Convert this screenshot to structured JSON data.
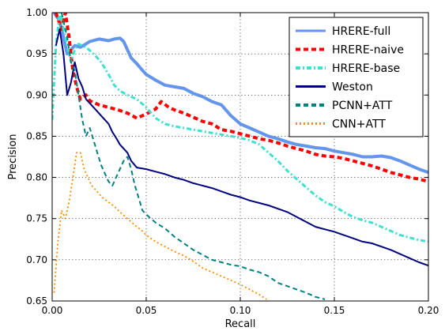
{
  "chart_data": {
    "type": "line",
    "xlabel": "Recall",
    "ylabel": "Precision",
    "xlim": [
      0.0,
      0.2
    ],
    "ylim": [
      0.65,
      1.0
    ],
    "x_ticks": [
      0.0,
      0.05,
      0.1,
      0.15,
      0.2
    ],
    "y_ticks": [
      0.65,
      0.7,
      0.75,
      0.8,
      0.85,
      0.9,
      0.95,
      1.0
    ],
    "x_tick_labels": [
      "0.00",
      "0.05",
      "0.10",
      "0.15",
      "0.20"
    ],
    "y_tick_labels": [
      "0.65",
      "0.70",
      "0.75",
      "0.80",
      "0.85",
      "0.90",
      "0.95",
      "1.00"
    ],
    "grid": true,
    "legend_position": "top-right",
    "series": [
      {
        "name": "HRERE-full",
        "color": "#6495ed",
        "style": "solid",
        "points": [
          [
            0.001,
            1.0
          ],
          [
            0.004,
            0.99
          ],
          [
            0.006,
            0.97
          ],
          [
            0.008,
            0.95
          ],
          [
            0.01,
            0.955
          ],
          [
            0.012,
            0.96
          ],
          [
            0.015,
            0.958
          ],
          [
            0.018,
            0.962
          ],
          [
            0.02,
            0.965
          ],
          [
            0.025,
            0.968
          ],
          [
            0.03,
            0.966
          ],
          [
            0.033,
            0.968
          ],
          [
            0.036,
            0.969
          ],
          [
            0.038,
            0.965
          ],
          [
            0.04,
            0.955
          ],
          [
            0.042,
            0.945
          ],
          [
            0.045,
            0.938
          ],
          [
            0.048,
            0.93
          ],
          [
            0.05,
            0.925
          ],
          [
            0.055,
            0.918
          ],
          [
            0.06,
            0.912
          ],
          [
            0.065,
            0.91
          ],
          [
            0.07,
            0.908
          ],
          [
            0.075,
            0.902
          ],
          [
            0.08,
            0.898
          ],
          [
            0.085,
            0.892
          ],
          [
            0.09,
            0.888
          ],
          [
            0.095,
            0.875
          ],
          [
            0.1,
            0.865
          ],
          [
            0.105,
            0.86
          ],
          [
            0.11,
            0.855
          ],
          [
            0.115,
            0.85
          ],
          [
            0.12,
            0.847
          ],
          [
            0.125,
            0.843
          ],
          [
            0.13,
            0.84
          ],
          [
            0.135,
            0.838
          ],
          [
            0.14,
            0.836
          ],
          [
            0.145,
            0.835
          ],
          [
            0.15,
            0.832
          ],
          [
            0.155,
            0.83
          ],
          [
            0.16,
            0.828
          ],
          [
            0.165,
            0.825
          ],
          [
            0.17,
            0.825
          ],
          [
            0.175,
            0.826
          ],
          [
            0.18,
            0.824
          ],
          [
            0.185,
            0.82
          ],
          [
            0.19,
            0.815
          ],
          [
            0.195,
            0.81
          ],
          [
            0.2,
            0.806
          ]
        ]
      },
      {
        "name": "HRERE-naive",
        "color": "#ff0000",
        "style": "dashed",
        "points": [
          [
            0.002,
            1.0
          ],
          [
            0.005,
            0.98
          ],
          [
            0.007,
            1.0
          ],
          [
            0.009,
            0.97
          ],
          [
            0.011,
            0.93
          ],
          [
            0.013,
            0.91
          ],
          [
            0.015,
            0.895
          ],
          [
            0.018,
            0.9
          ],
          [
            0.02,
            0.893
          ],
          [
            0.025,
            0.888
          ],
          [
            0.03,
            0.885
          ],
          [
            0.035,
            0.882
          ],
          [
            0.04,
            0.878
          ],
          [
            0.045,
            0.872
          ],
          [
            0.05,
            0.877
          ],
          [
            0.055,
            0.883
          ],
          [
            0.058,
            0.892
          ],
          [
            0.062,
            0.885
          ],
          [
            0.065,
            0.882
          ],
          [
            0.07,
            0.878
          ],
          [
            0.075,
            0.873
          ],
          [
            0.08,
            0.868
          ],
          [
            0.085,
            0.865
          ],
          [
            0.09,
            0.858
          ],
          [
            0.095,
            0.856
          ],
          [
            0.1,
            0.853
          ],
          [
            0.105,
            0.85
          ],
          [
            0.11,
            0.847
          ],
          [
            0.115,
            0.845
          ],
          [
            0.12,
            0.842
          ],
          [
            0.125,
            0.838
          ],
          [
            0.13,
            0.835
          ],
          [
            0.135,
            0.832
          ],
          [
            0.14,
            0.828
          ],
          [
            0.145,
            0.826
          ],
          [
            0.15,
            0.825
          ],
          [
            0.155,
            0.823
          ],
          [
            0.16,
            0.82
          ],
          [
            0.165,
            0.817
          ],
          [
            0.17,
            0.814
          ],
          [
            0.175,
            0.81
          ],
          [
            0.18,
            0.806
          ],
          [
            0.185,
            0.803
          ],
          [
            0.19,
            0.8
          ],
          [
            0.195,
            0.798
          ],
          [
            0.2,
            0.795
          ]
        ]
      },
      {
        "name": "HRERE-base",
        "color": "#40e0d0",
        "style": "dashdot",
        "points": [
          [
            0.0,
            0.87
          ],
          [
            0.002,
            0.96
          ],
          [
            0.004,
            1.0
          ],
          [
            0.006,
            0.98
          ],
          [
            0.008,
            0.96
          ],
          [
            0.01,
            0.94
          ],
          [
            0.012,
            0.955
          ],
          [
            0.014,
            0.962
          ],
          [
            0.018,
            0.958
          ],
          [
            0.022,
            0.95
          ],
          [
            0.026,
            0.94
          ],
          [
            0.03,
            0.925
          ],
          [
            0.033,
            0.912
          ],
          [
            0.036,
            0.905
          ],
          [
            0.04,
            0.9
          ],
          [
            0.045,
            0.895
          ],
          [
            0.05,
            0.885
          ],
          [
            0.055,
            0.872
          ],
          [
            0.06,
            0.865
          ],
          [
            0.065,
            0.862
          ],
          [
            0.07,
            0.86
          ],
          [
            0.075,
            0.858
          ],
          [
            0.08,
            0.856
          ],
          [
            0.085,
            0.854
          ],
          [
            0.09,
            0.852
          ],
          [
            0.095,
            0.85
          ],
          [
            0.1,
            0.848
          ],
          [
            0.105,
            0.845
          ],
          [
            0.11,
            0.84
          ],
          [
            0.115,
            0.83
          ],
          [
            0.12,
            0.82
          ],
          [
            0.125,
            0.808
          ],
          [
            0.13,
            0.798
          ],
          [
            0.135,
            0.788
          ],
          [
            0.14,
            0.778
          ],
          [
            0.145,
            0.77
          ],
          [
            0.15,
            0.765
          ],
          [
            0.155,
            0.758
          ],
          [
            0.16,
            0.752
          ],
          [
            0.165,
            0.748
          ],
          [
            0.17,
            0.745
          ],
          [
            0.175,
            0.74
          ],
          [
            0.18,
            0.735
          ],
          [
            0.185,
            0.73
          ],
          [
            0.19,
            0.727
          ],
          [
            0.195,
            0.724
          ],
          [
            0.2,
            0.722
          ]
        ]
      },
      {
        "name": "Weston",
        "color": "#000080",
        "style": "solid",
        "points": [
          [
            0.002,
            0.96
          ],
          [
            0.004,
            0.98
          ],
          [
            0.006,
            0.95
          ],
          [
            0.008,
            0.9
          ],
          [
            0.01,
            0.915
          ],
          [
            0.012,
            0.94
          ],
          [
            0.014,
            0.92
          ],
          [
            0.016,
            0.91
          ],
          [
            0.018,
            0.895
          ],
          [
            0.02,
            0.89
          ],
          [
            0.022,
            0.885
          ],
          [
            0.024,
            0.88
          ],
          [
            0.026,
            0.875
          ],
          [
            0.028,
            0.87
          ],
          [
            0.03,
            0.865
          ],
          [
            0.032,
            0.855
          ],
          [
            0.034,
            0.848
          ],
          [
            0.036,
            0.84
          ],
          [
            0.038,
            0.835
          ],
          [
            0.04,
            0.83
          ],
          [
            0.042,
            0.82
          ],
          [
            0.045,
            0.812
          ],
          [
            0.05,
            0.81
          ],
          [
            0.055,
            0.807
          ],
          [
            0.06,
            0.804
          ],
          [
            0.065,
            0.8
          ],
          [
            0.07,
            0.797
          ],
          [
            0.075,
            0.793
          ],
          [
            0.08,
            0.79
          ],
          [
            0.085,
            0.787
          ],
          [
            0.09,
            0.783
          ],
          [
            0.095,
            0.779
          ],
          [
            0.1,
            0.776
          ],
          [
            0.105,
            0.772
          ],
          [
            0.11,
            0.769
          ],
          [
            0.115,
            0.766
          ],
          [
            0.12,
            0.762
          ],
          [
            0.125,
            0.758
          ],
          [
            0.13,
            0.752
          ],
          [
            0.135,
            0.746
          ],
          [
            0.14,
            0.74
          ],
          [
            0.145,
            0.737
          ],
          [
            0.15,
            0.734
          ],
          [
            0.155,
            0.73
          ],
          [
            0.16,
            0.726
          ],
          [
            0.165,
            0.722
          ],
          [
            0.17,
            0.72
          ],
          [
            0.175,
            0.716
          ],
          [
            0.18,
            0.712
          ],
          [
            0.185,
            0.707
          ],
          [
            0.19,
            0.702
          ],
          [
            0.195,
            0.697
          ],
          [
            0.2,
            0.693
          ]
        ]
      },
      {
        "name": "PCNN+ATT",
        "color": "#008080",
        "style": "dashed",
        "points": [
          [
            0.005,
            1.0
          ],
          [
            0.008,
            0.97
          ],
          [
            0.01,
            0.94
          ],
          [
            0.012,
            0.93
          ],
          [
            0.014,
            0.9
          ],
          [
            0.016,
            0.87
          ],
          [
            0.018,
            0.85
          ],
          [
            0.02,
            0.86
          ],
          [
            0.022,
            0.845
          ],
          [
            0.024,
            0.83
          ],
          [
            0.026,
            0.815
          ],
          [
            0.028,
            0.805
          ],
          [
            0.03,
            0.795
          ],
          [
            0.032,
            0.79
          ],
          [
            0.034,
            0.8
          ],
          [
            0.036,
            0.81
          ],
          [
            0.038,
            0.82
          ],
          [
            0.04,
            0.825
          ],
          [
            0.042,
            0.81
          ],
          [
            0.044,
            0.79
          ],
          [
            0.046,
            0.775
          ],
          [
            0.048,
            0.76
          ],
          [
            0.05,
            0.755
          ],
          [
            0.055,
            0.745
          ],
          [
            0.06,
            0.738
          ],
          [
            0.065,
            0.728
          ],
          [
            0.07,
            0.72
          ],
          [
            0.075,
            0.712
          ],
          [
            0.08,
            0.706
          ],
          [
            0.085,
            0.7
          ],
          [
            0.09,
            0.697
          ],
          [
            0.095,
            0.694
          ],
          [
            0.1,
            0.692
          ],
          [
            0.105,
            0.688
          ],
          [
            0.11,
            0.685
          ],
          [
            0.115,
            0.68
          ],
          [
            0.12,
            0.672
          ],
          [
            0.125,
            0.668
          ],
          [
            0.13,
            0.664
          ],
          [
            0.135,
            0.66
          ],
          [
            0.14,
            0.655
          ],
          [
            0.145,
            0.652
          ]
        ]
      },
      {
        "name": "CNN+ATT",
        "color": "#ff8c00",
        "style": "dotted",
        "points": [
          [
            0.001,
            0.66
          ],
          [
            0.003,
            0.72
          ],
          [
            0.005,
            0.76
          ],
          [
            0.007,
            0.75
          ],
          [
            0.009,
            0.77
          ],
          [
            0.011,
            0.8
          ],
          [
            0.013,
            0.83
          ],
          [
            0.015,
            0.83
          ],
          [
            0.017,
            0.81
          ],
          [
            0.019,
            0.8
          ],
          [
            0.021,
            0.79
          ],
          [
            0.023,
            0.785
          ],
          [
            0.025,
            0.78
          ],
          [
            0.027,
            0.775
          ],
          [
            0.03,
            0.77
          ],
          [
            0.033,
            0.765
          ],
          [
            0.036,
            0.758
          ],
          [
            0.039,
            0.752
          ],
          [
            0.042,
            0.746
          ],
          [
            0.045,
            0.74
          ],
          [
            0.048,
            0.735
          ],
          [
            0.05,
            0.73
          ],
          [
            0.055,
            0.722
          ],
          [
            0.06,
            0.716
          ],
          [
            0.065,
            0.71
          ],
          [
            0.07,
            0.705
          ],
          [
            0.075,
            0.698
          ],
          [
            0.08,
            0.69
          ],
          [
            0.085,
            0.685
          ],
          [
            0.09,
            0.68
          ],
          [
            0.095,
            0.675
          ],
          [
            0.1,
            0.67
          ],
          [
            0.105,
            0.664
          ],
          [
            0.11,
            0.658
          ],
          [
            0.114,
            0.652
          ]
        ]
      }
    ]
  }
}
